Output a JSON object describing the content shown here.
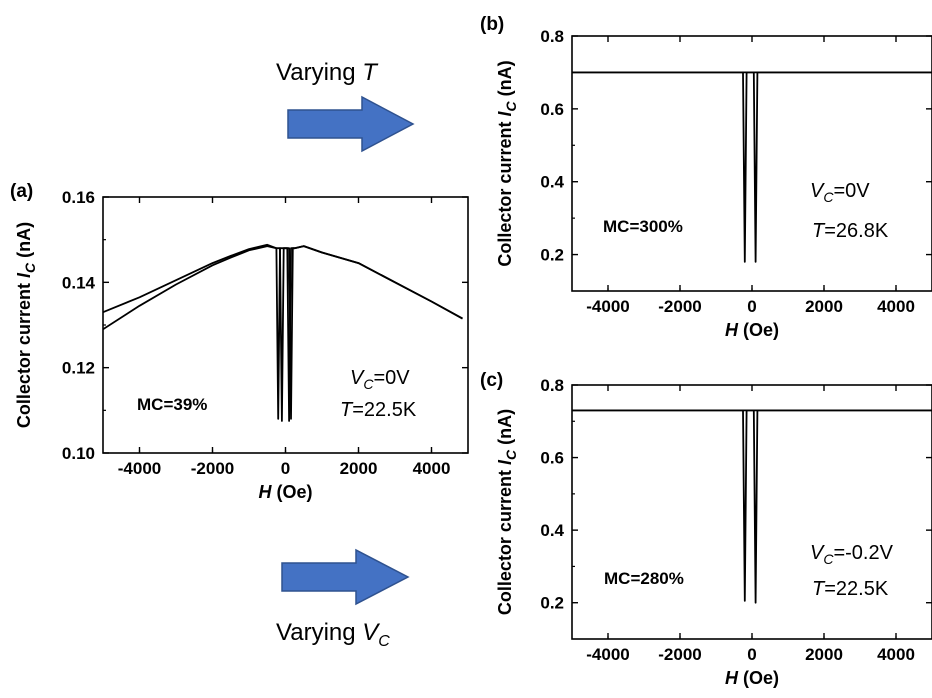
{
  "colors": {
    "arrow": "#4472C4",
    "arrow_stroke": "#2F528F",
    "line": "#000000"
  },
  "annotations": {
    "varying_t": {
      "prefix": "Varying ",
      "var": "T"
    },
    "varying_vc": {
      "prefix": "Varying ",
      "var": "V",
      "sub": "C"
    }
  },
  "chart_data": [
    {
      "type": "line",
      "panel": "(a)",
      "xlabel": {
        "var": "H",
        "unit": " (Oe)"
      },
      "ylabel": {
        "prefix": "Collector current ",
        "var": "I",
        "sub": "C",
        "unit": " (nA)"
      },
      "xlim": [
        -5000,
        5000
      ],
      "ylim": [
        0.1,
        0.16
      ],
      "xticks": [
        -4000,
        -2000,
        0,
        2000,
        4000
      ],
      "xtick_labels": [
        "-4000",
        "-2000",
        "0",
        "2000",
        "4000"
      ],
      "yticks": [
        0.1,
        0.12,
        0.14,
        0.16
      ],
      "ytick_labels": [
        "0.10",
        "0.12",
        "0.14",
        "0.16"
      ],
      "mc_label": "MC=39%",
      "vc_label": {
        "var": "V",
        "sub": "C",
        "text": "=0V"
      },
      "t_label": {
        "var": "T",
        "text": "=22.5K"
      },
      "series": [
        {
          "x": [
            -5000,
            -4000,
            -3000,
            -2000,
            -1500,
            -1000,
            -500,
            -250,
            -200,
            -150,
            -100,
            0,
            100,
            150,
            200,
            250,
            500,
            1000,
            2000,
            3000,
            4000,
            4850
          ],
          "y": [
            0.129,
            0.1345,
            0.1395,
            0.144,
            0.1458,
            0.1475,
            0.1485,
            0.148,
            0.108,
            0.148,
            0.148,
            0.148,
            0.148,
            0.108,
            0.148,
            0.148,
            0.1485,
            0.147,
            0.1445,
            0.14,
            0.1355,
            0.1315
          ]
        },
        {
          "x": [
            -5000,
            -4000,
            -3000,
            -2000,
            -1500,
            -1000,
            -500,
            -250,
            -150,
            -100,
            -50,
            0,
            50,
            100,
            150,
            250,
            500,
            1000,
            2000,
            3000,
            4000,
            4850
          ],
          "y": [
            0.133,
            0.1365,
            0.1405,
            0.1445,
            0.1462,
            0.1478,
            0.1488,
            0.148,
            0.148,
            0.1075,
            0.148,
            0.148,
            0.148,
            0.1075,
            0.148,
            0.148,
            0.1485,
            0.147,
            0.1445,
            0.14,
            0.1355,
            0.1315
          ]
        }
      ]
    },
    {
      "type": "line",
      "panel": "(b)",
      "xlabel": {
        "var": "H",
        "unit": " (Oe)"
      },
      "ylabel": {
        "prefix": "Collector current ",
        "var": "I",
        "sub": "C",
        "unit": " (nA)"
      },
      "xlim": [
        -5000,
        5000
      ],
      "ylim": [
        0.1,
        0.8
      ],
      "xticks": [
        -4000,
        -2000,
        0,
        2000,
        4000
      ],
      "xtick_labels": [
        "-4000",
        "-2000",
        "0",
        "2000",
        "4000"
      ],
      "yticks": [
        0.2,
        0.4,
        0.6,
        0.8
      ],
      "ytick_labels": [
        "0.2",
        "0.4",
        "0.6",
        "0.8"
      ],
      "mc_label": "MC=300%",
      "vc_label": {
        "var": "V",
        "sub": "C",
        "text": "=0V"
      },
      "t_label": {
        "var": "T",
        "text": "=26.8K"
      },
      "series": [
        {
          "x": [
            -5000,
            -400,
            -250,
            -200,
            -150,
            0,
            200,
            5000
          ],
          "y": [
            0.7,
            0.7,
            0.7,
            0.18,
            0.7,
            0.7,
            0.7,
            0.7
          ]
        },
        {
          "x": [
            -5000,
            -200,
            0,
            50,
            100,
            150,
            250,
            5000
          ],
          "y": [
            0.7,
            0.7,
            0.7,
            0.7,
            0.18,
            0.7,
            0.7,
            0.7
          ]
        }
      ]
    },
    {
      "type": "line",
      "panel": "(c)",
      "xlabel": {
        "var": "H",
        "unit": " (Oe)"
      },
      "ylabel": {
        "prefix": "Collector current ",
        "var": "I",
        "sub": "C",
        "unit": " (nA)"
      },
      "xlim": [
        -5000,
        5000
      ],
      "ylim": [
        0.1,
        0.8
      ],
      "xticks": [
        -4000,
        -2000,
        0,
        2000,
        4000
      ],
      "xtick_labels": [
        "-4000",
        "-2000",
        "0",
        "2000",
        "4000"
      ],
      "yticks": [
        0.2,
        0.4,
        0.6,
        0.8
      ],
      "ytick_labels": [
        "0.2",
        "0.4",
        "0.6",
        "0.8"
      ],
      "mc_label": "MC=280%",
      "vc_label": {
        "var": "V",
        "sub": "C",
        "text": "=-0.2V"
      },
      "t_label": {
        "var": "T",
        "text": "=22.5K"
      },
      "series": [
        {
          "x": [
            -5000,
            -400,
            -250,
            -200,
            -150,
            0,
            200,
            5000
          ],
          "y": [
            0.73,
            0.73,
            0.73,
            0.205,
            0.73,
            0.73,
            0.73,
            0.73
          ]
        },
        {
          "x": [
            -5000,
            -200,
            0,
            50,
            100,
            150,
            250,
            5000
          ],
          "y": [
            0.73,
            0.73,
            0.73,
            0.73,
            0.2,
            0.73,
            0.73,
            0.73
          ]
        }
      ]
    }
  ]
}
